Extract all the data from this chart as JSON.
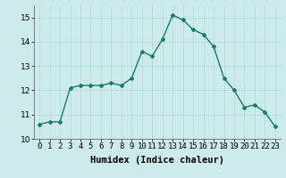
{
  "x": [
    0,
    1,
    2,
    3,
    4,
    5,
    6,
    7,
    8,
    9,
    10,
    11,
    12,
    13,
    14,
    15,
    16,
    17,
    18,
    19,
    20,
    21,
    22,
    23
  ],
  "y": [
    10.6,
    10.7,
    10.7,
    12.1,
    12.2,
    12.2,
    12.2,
    12.3,
    12.2,
    12.5,
    13.6,
    13.4,
    14.1,
    15.1,
    14.9,
    14.5,
    14.3,
    13.8,
    12.5,
    12.0,
    11.3,
    11.4,
    11.1,
    10.5
  ],
  "line_color": "#1a7a6e",
  "marker": "D",
  "marker_size": 2.0,
  "bg_color": "#cceaea",
  "grid_color": "#b0d8d8",
  "xlabel": "Humidex (Indice chaleur)",
  "ylim": [
    10,
    15.5
  ],
  "xlim": [
    -0.5,
    23.5
  ],
  "yticks": [
    10,
    11,
    12,
    13,
    14,
    15
  ],
  "xticks": [
    0,
    1,
    2,
    3,
    4,
    5,
    6,
    7,
    8,
    9,
    10,
    11,
    12,
    13,
    14,
    15,
    16,
    17,
    18,
    19,
    20,
    21,
    22,
    23
  ],
  "xtick_labels": [
    "0",
    "1",
    "2",
    "3",
    "4",
    "5",
    "6",
    "7",
    "8",
    "9",
    "10",
    "11",
    "12",
    "13",
    "14",
    "15",
    "16",
    "17",
    "18",
    "19",
    "20",
    "21",
    "22",
    "23"
  ],
  "tick_fontsize": 6.5,
  "xlabel_fontsize": 7.5
}
